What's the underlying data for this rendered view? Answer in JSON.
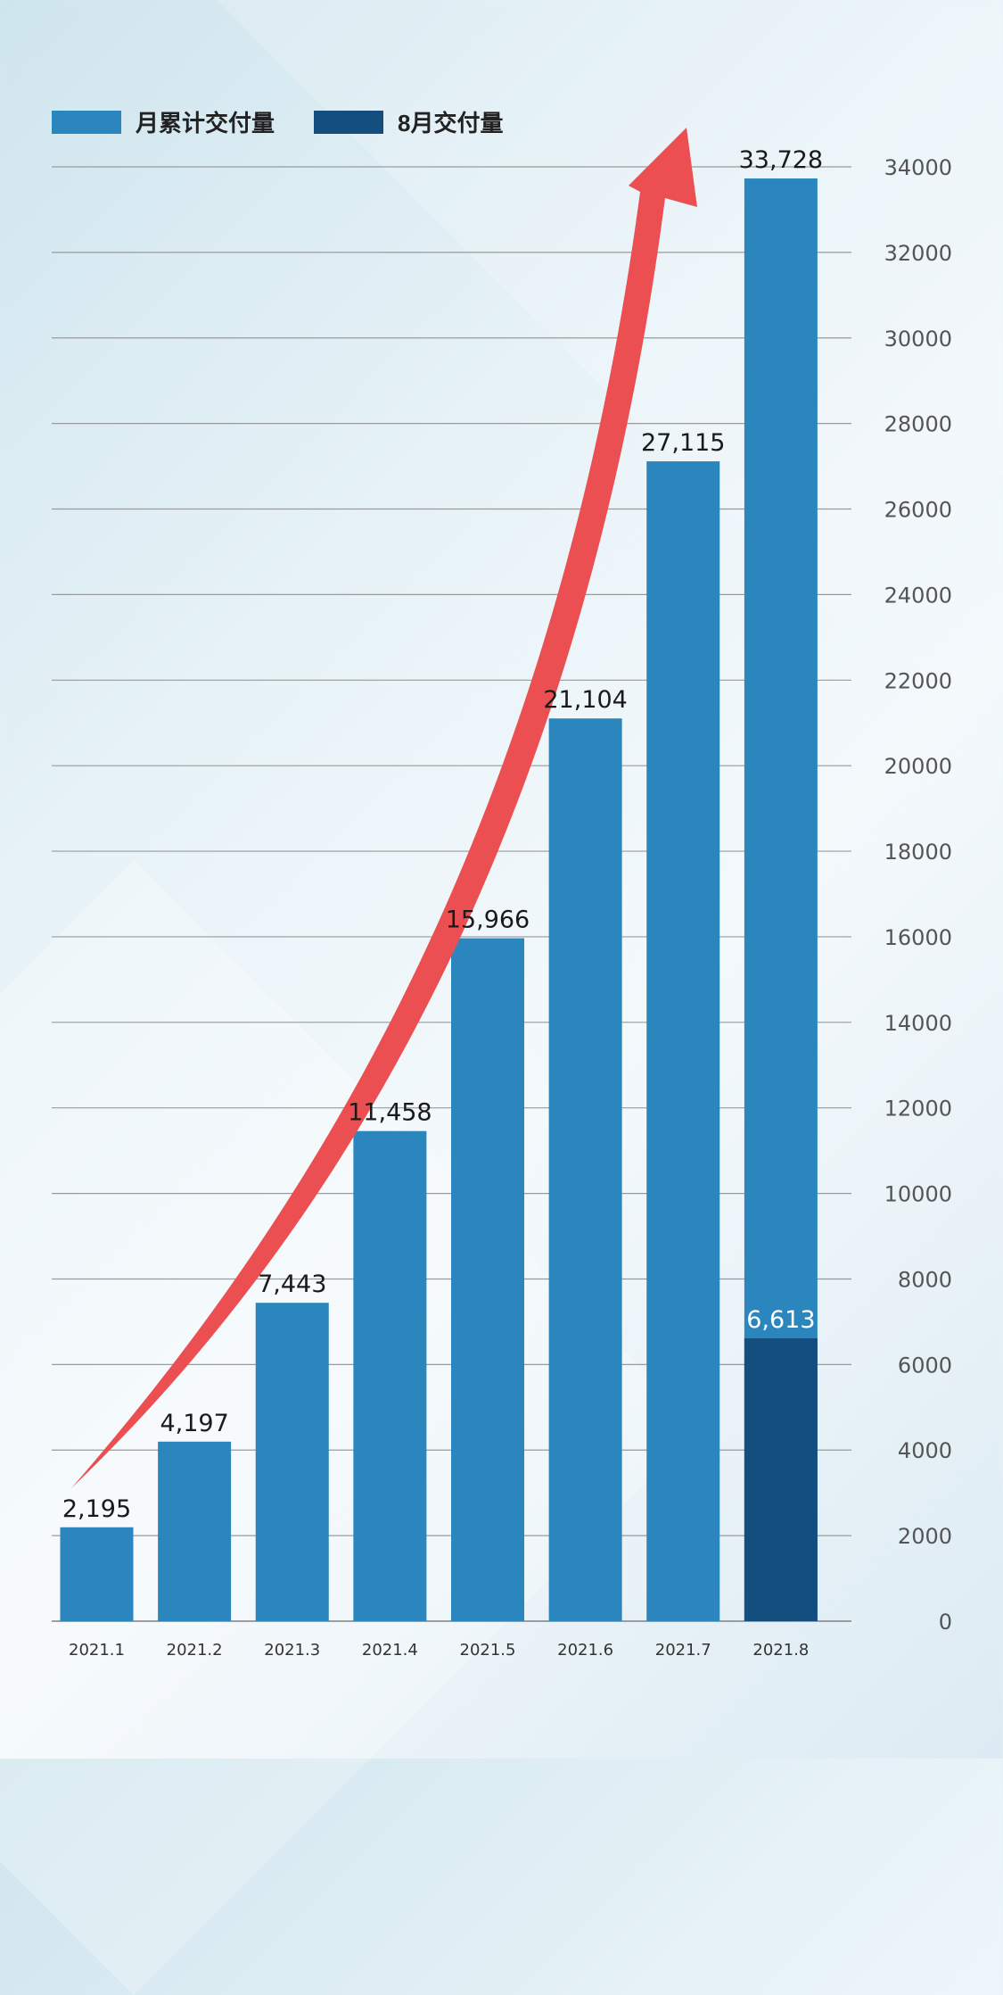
{
  "colors": {
    "cumulative": "#2a86bd",
    "august": "#134e7e",
    "arrow": "#ec4f52",
    "grid": "#9a9a9a"
  },
  "legend": [
    {
      "label": "月累计交付量",
      "color": "#2a86bd"
    },
    {
      "label": "8月交付量",
      "color": "#134e7e"
    }
  ],
  "chart_data": {
    "type": "bar",
    "categories": [
      "2021.1",
      "2021.2",
      "2021.3",
      "2021.4",
      "2021.5",
      "2021.6",
      "2021.7",
      "2021.8"
    ],
    "series": [
      {
        "name": "月累计交付量",
        "values": [
          2195,
          4197,
          7443,
          11458,
          15966,
          21104,
          27115,
          33728
        ]
      },
      {
        "name": "8月交付量",
        "values": [
          null,
          null,
          null,
          null,
          null,
          null,
          null,
          6613
        ]
      }
    ],
    "value_labels": [
      "2,195",
      "4,197",
      "7,443",
      "11,458",
      "15,966",
      "21,104",
      "27,115",
      "33,728"
    ],
    "august_label": "6,613",
    "y_ticks": [
      0,
      2000,
      4000,
      6000,
      8000,
      10000,
      12000,
      14000,
      16000,
      18000,
      20000,
      22000,
      24000,
      26000,
      28000,
      30000,
      32000,
      34000
    ],
    "ylim": [
      0,
      34000
    ],
    "yaxis_position": "right",
    "grid": true,
    "legend_position": "top-left",
    "annotation": "red upward trend arrow"
  }
}
